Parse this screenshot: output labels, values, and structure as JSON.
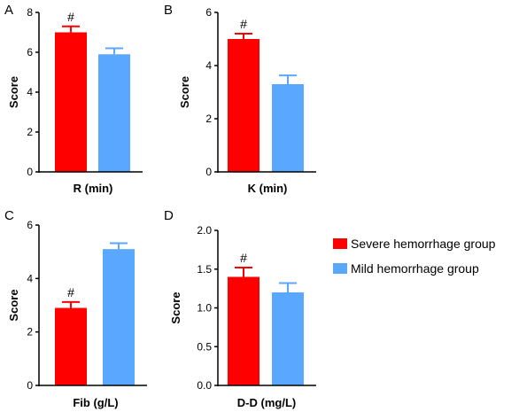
{
  "colors": {
    "severe": "#ff0000",
    "mild": "#5aa7ff",
    "axis": "#000000"
  },
  "legend": [
    {
      "label": "Severe hemorrhage group",
      "color": "#ff0000"
    },
    {
      "label": "Mild hemorrhage group",
      "color": "#5aa7ff"
    }
  ],
  "chart_data": [
    {
      "type": "bar",
      "panel": "A",
      "xlabel": "R (min)",
      "ylabel": "Score",
      "ylim": [
        0,
        8
      ],
      "yticks": [
        "0",
        "2",
        "4",
        "6",
        "8"
      ],
      "categories": [
        "Severe hemorrhage group",
        "Mild hemorrhage group"
      ],
      "values": [
        7.0,
        5.9
      ],
      "errors": [
        0.3,
        0.3
      ],
      "annotations": [
        "#",
        ""
      ]
    },
    {
      "type": "bar",
      "panel": "B",
      "xlabel": "K (min)",
      "ylabel": "Score",
      "ylim": [
        0,
        6
      ],
      "yticks": [
        "0",
        "2",
        "4",
        "6"
      ],
      "categories": [
        "Severe hemorrhage group",
        "Mild hemorrhage group"
      ],
      "values": [
        5.0,
        3.3
      ],
      "errors": [
        0.2,
        0.33
      ],
      "annotations": [
        "#",
        ""
      ]
    },
    {
      "type": "bar",
      "panel": "C",
      "xlabel": "Fib (g/L)",
      "ylabel": "Score",
      "ylim": [
        0,
        6
      ],
      "yticks": [
        "0",
        "2",
        "4",
        "6"
      ],
      "categories": [
        "Severe hemorrhage group",
        "Mild hemorrhage group"
      ],
      "values": [
        2.9,
        5.1
      ],
      "errors": [
        0.22,
        0.22
      ],
      "annotations": [
        "#",
        ""
      ]
    },
    {
      "type": "bar",
      "panel": "D",
      "xlabel": "D-D (mg/L)",
      "ylabel": "Score",
      "ylim": [
        0,
        2.0
      ],
      "yticks": [
        "0.0",
        "0.5",
        "1.0",
        "1.5",
        "2.0"
      ],
      "categories": [
        "Severe hemorrhage group",
        "Mild hemorrhage group"
      ],
      "values": [
        1.4,
        1.2
      ],
      "errors": [
        0.12,
        0.12
      ],
      "annotations": [
        "#",
        ""
      ]
    }
  ]
}
